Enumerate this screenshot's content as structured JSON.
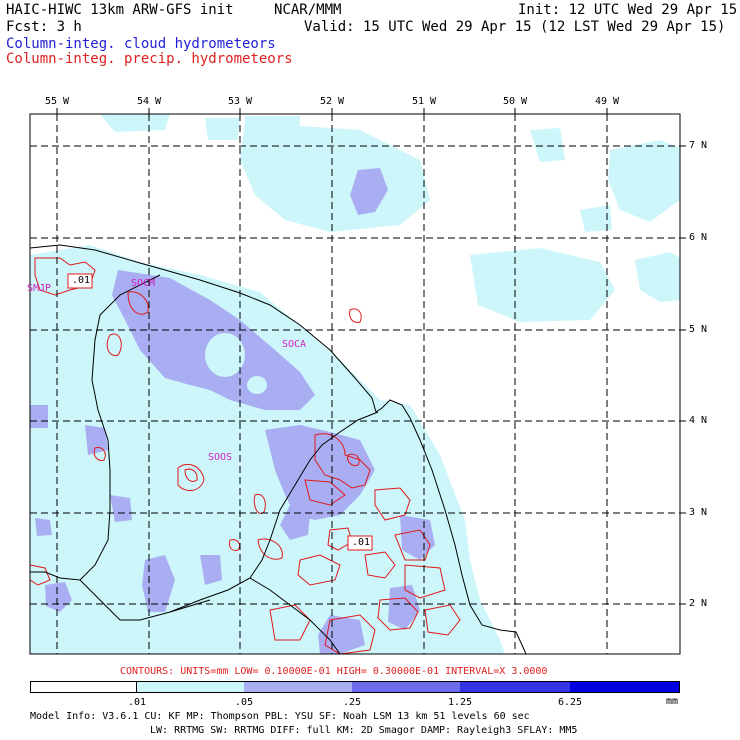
{
  "header": {
    "model": "HAIC-HIWC 13km ARW-GFS init",
    "org": "NCAR/MMM",
    "init": "Init: 12 UTC Wed 29 Apr 15",
    "fcst": "Fcst:    3 h",
    "valid": "Valid: 15 UTC Wed 29 Apr 15 (12 LST Wed 29 Apr 15)",
    "legend_cloud": "Column-integ. cloud hydrometeors",
    "legend_precip": "Column-integ. precip. hydrometeors",
    "colors": {
      "cloud_text": "#1f1fd6",
      "precip_text": "#e02020"
    }
  },
  "map": {
    "lon_labels": [
      "55 W",
      "54 W",
      "53 W",
      "52 W",
      "51 W",
      "50 W",
      "49 W"
    ],
    "lat_labels": [
      "7 N",
      "6 N",
      "5 N",
      "4 N",
      "3 N",
      "2 N"
    ],
    "stations": [
      "SMJP",
      "SOCM",
      "SOCA",
      "SOOS"
    ],
    "contour_labels": [
      ".01",
      ".01"
    ],
    "colors": {
      "land_line": "#000000",
      "grid": "#000000",
      "precip_contour": "#e01818"
    }
  },
  "contours_note": "CONTOURS:  UNITS=mm  LOW= 0.10000E-01  HIGH= 0.30000E-01  INTERVAL=X  3.0000",
  "colorbar": {
    "labels": [
      ".01",
      ".05",
      ".25",
      "1.25",
      "6.25"
    ],
    "unit": "mm",
    "colors": [
      "#ffffff",
      "#cdf6fb",
      "#a9aef2",
      "#6c6ced",
      "#3434e6",
      "#0000e0"
    ]
  },
  "model_info": {
    "line1": "Model Info: V3.6.1    CU: KF       MP: Thompson      PBL: YSU        SF: Noah LSM      13 km   51 levels   60 sec",
    "line2": "LW: RRTMG    SW: RRTMG   DIFF: full    KM: 2D Smagor  DAMP: Rayleigh3   SFLAY: MM5"
  }
}
